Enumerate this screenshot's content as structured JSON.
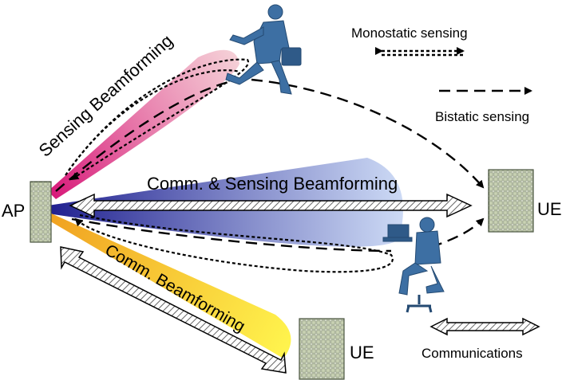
{
  "labels": {
    "ap": "AP",
    "ue_right": "UE",
    "ue_bottom": "UE",
    "sensing_beam": "Sensing Beamforming",
    "comm_sensing_beam": "Comm. & Sensing Beamforming",
    "comm_beam": "Comm. Beamforming"
  },
  "legend": {
    "monostatic": "Monostatic sensing",
    "bistatic": "Bistatic sensing",
    "communications": "Communications"
  },
  "colors": {
    "sensing_beam": "#e0448f",
    "comm_sensing_beam": "#3a3fa8",
    "comm_beam": "#f0b020",
    "person": "#3d6fa3",
    "panel_grid": "#7a8a6a"
  },
  "icons": {
    "walking_person": "walking-person-icon",
    "seated_person": "seated-person-icon",
    "antenna_panel": "antenna-array-icon"
  }
}
